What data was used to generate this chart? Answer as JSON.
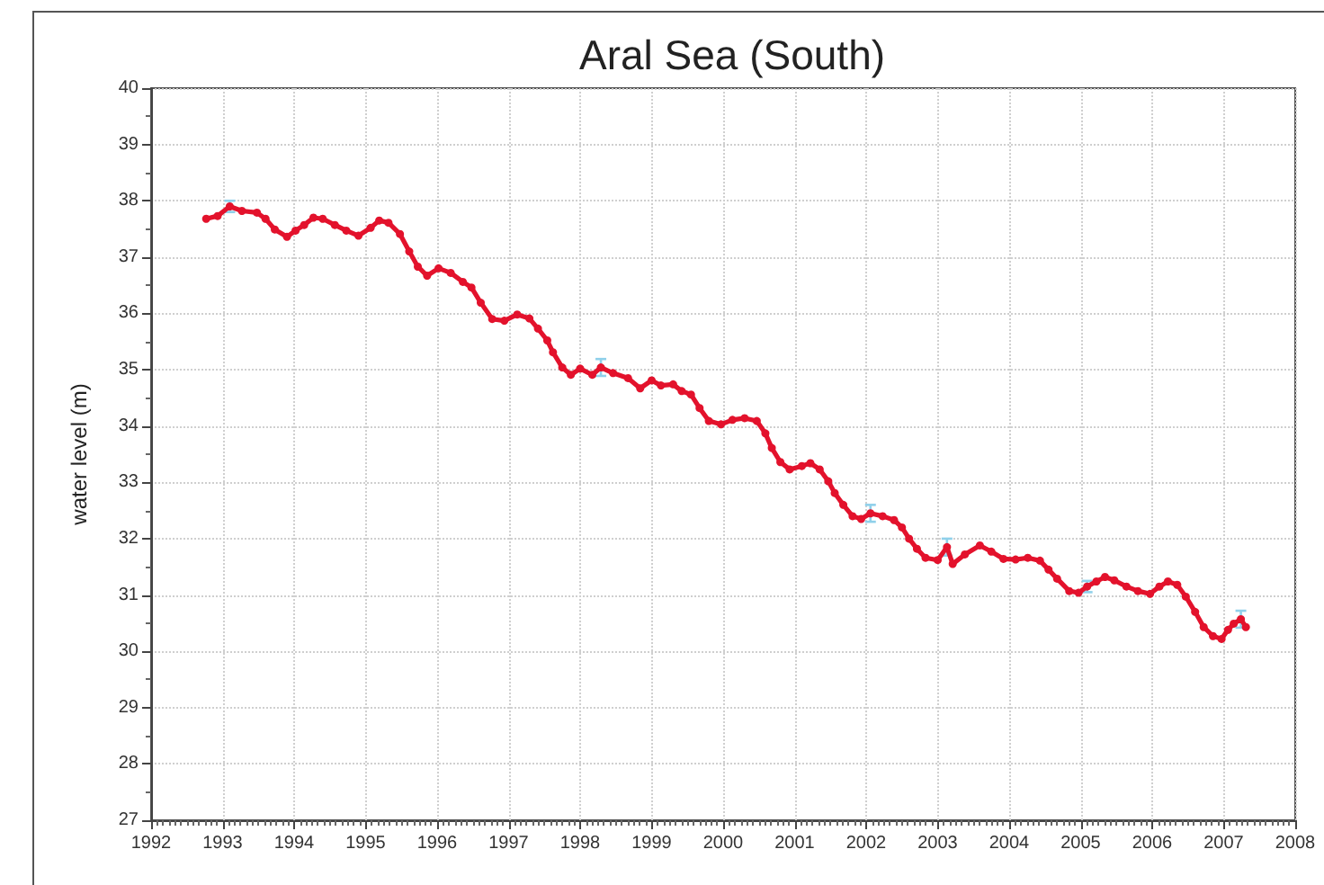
{
  "chart_data": {
    "type": "line",
    "title": "Aral Sea (South)",
    "ylabel": "water level (m)",
    "x": [
      1992.77,
      1992.93,
      1993.1,
      1993.27,
      1993.48,
      1993.6,
      1993.73,
      1993.9,
      1994.02,
      1994.14,
      1994.27,
      1994.4,
      1994.57,
      1994.73,
      1994.9,
      1995.07,
      1995.19,
      1995.32,
      1995.48,
      1995.61,
      1995.73,
      1995.86,
      1996.02,
      1996.19,
      1996.36,
      1996.48,
      1996.61,
      1996.77,
      1996.94,
      1997.12,
      1997.29,
      1997.41,
      1997.54,
      1997.62,
      1997.75,
      1997.87,
      1998.0,
      1998.17,
      1998.29,
      1998.46,
      1998.67,
      1998.84,
      1999.0,
      1999.13,
      1999.3,
      1999.42,
      1999.55,
      1999.67,
      1999.8,
      1999.97,
      2000.13,
      2000.3,
      2000.47,
      2000.59,
      2000.68,
      2000.8,
      2000.93,
      2001.1,
      2001.22,
      2001.35,
      2001.47,
      2001.56,
      2001.68,
      2001.81,
      2001.93,
      2002.06,
      2002.23,
      2002.39,
      2002.5,
      2002.6,
      2002.71,
      2002.83,
      2003.0,
      2003.13,
      2003.21,
      2003.38,
      2003.59,
      2003.75,
      2003.92,
      2004.09,
      2004.26,
      2004.43,
      2004.55,
      2004.67,
      2004.84,
      2004.97,
      2005.09,
      2005.22,
      2005.34,
      2005.47,
      2005.64,
      2005.8,
      2005.97,
      2006.1,
      2006.22,
      2006.35,
      2006.47,
      2006.6,
      2006.72,
      2006.85,
      2006.97,
      2007.06,
      2007.14,
      2007.24,
      2007.31
    ],
    "values": [
      37.68,
      37.73,
      37.9,
      37.82,
      37.79,
      37.68,
      37.49,
      37.36,
      37.47,
      37.57,
      37.7,
      37.68,
      37.57,
      37.47,
      37.38,
      37.52,
      37.65,
      37.61,
      37.41,
      37.1,
      36.83,
      36.67,
      36.8,
      36.72,
      36.56,
      36.46,
      36.19,
      35.9,
      35.87,
      35.98,
      35.91,
      35.73,
      35.52,
      35.31,
      35.04,
      34.91,
      35.02,
      34.91,
      35.04,
      34.94,
      34.85,
      34.67,
      34.81,
      34.72,
      34.74,
      34.62,
      34.56,
      34.32,
      34.09,
      34.03,
      34.11,
      34.14,
      34.09,
      33.87,
      33.61,
      33.36,
      33.23,
      33.29,
      33.34,
      33.23,
      33.02,
      32.81,
      32.6,
      32.4,
      32.35,
      32.45,
      32.4,
      32.33,
      32.2,
      32.0,
      31.82,
      31.66,
      31.62,
      31.85,
      31.55,
      31.72,
      31.88,
      31.77,
      31.64,
      31.63,
      31.66,
      31.61,
      31.45,
      31.29,
      31.07,
      31.04,
      31.15,
      31.24,
      31.32,
      31.26,
      31.15,
      31.07,
      31.02,
      31.15,
      31.24,
      31.18,
      30.97,
      30.7,
      30.43,
      30.27,
      30.22,
      30.38,
      30.49,
      30.57,
      30.43
    ],
    "errors": [
      null,
      null,
      0.1,
      null,
      null,
      null,
      null,
      null,
      null,
      null,
      null,
      null,
      null,
      null,
      null,
      null,
      null,
      null,
      null,
      null,
      null,
      null,
      null,
      null,
      null,
      null,
      null,
      null,
      null,
      null,
      null,
      null,
      null,
      null,
      null,
      null,
      null,
      null,
      0.15,
      null,
      null,
      null,
      null,
      null,
      null,
      null,
      null,
      null,
      null,
      null,
      null,
      null,
      null,
      null,
      null,
      null,
      null,
      null,
      null,
      null,
      null,
      null,
      null,
      null,
      null,
      0.15,
      null,
      null,
      null,
      null,
      null,
      null,
      null,
      0.15,
      null,
      null,
      null,
      null,
      null,
      null,
      null,
      null,
      null,
      null,
      null,
      null,
      0.1,
      null,
      null,
      null,
      null,
      null,
      null,
      null,
      null,
      null,
      null,
      null,
      null,
      null,
      null,
      null,
      null,
      0.15,
      null
    ],
    "color": "#e3122c",
    "xlim": [
      1992,
      2008
    ],
    "xticks": [
      1992,
      1993,
      1994,
      1995,
      1996,
      1997,
      1998,
      1999,
      2000,
      2001,
      2002,
      2003,
      2004,
      2005,
      2006,
      2007,
      2008
    ],
    "ylim": [
      27,
      40
    ],
    "yticks": [
      27,
      28,
      29,
      30,
      31,
      32,
      33,
      34,
      35,
      36,
      37,
      38,
      39,
      40
    ],
    "grid": true,
    "marker": "circle",
    "line_style": "solid"
  }
}
